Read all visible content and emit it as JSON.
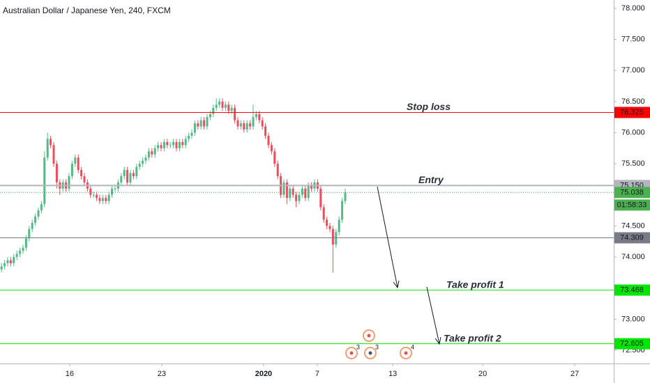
{
  "chart_data": {
    "type": "candlestick",
    "title": "Australian Dollar / Japanese Yen, 240, FXCM",
    "up_color": "#53b987",
    "down_color": "#eb4d5c",
    "xlim": [
      -0.5,
      199.5
    ],
    "xticks": [
      {
        "value": 22.2,
        "label": "16"
      },
      {
        "value": 52.2,
        "label": "23"
      },
      {
        "value": 85.4,
        "label": "2020"
      },
      {
        "value": 102.9,
        "label": "7"
      },
      {
        "value": 127.5,
        "label": "13"
      },
      {
        "value": 156.8,
        "label": "20"
      },
      {
        "value": 186.8,
        "label": "27"
      }
    ],
    "ylim": [
      72.287,
      78.134
    ],
    "yticks": [
      {
        "value": 72.5,
        "label": "72.500"
      },
      {
        "value": 73,
        "label": "73.000"
      },
      {
        "value": 73.5,
        "label": "73.500"
      },
      {
        "value": 74,
        "label": "74.000"
      },
      {
        "value": 74.5,
        "label": "74.500"
      },
      {
        "value": 75,
        "label": "75.000"
      },
      {
        "value": 75.5,
        "label": "75.500"
      },
      {
        "value": 76,
        "label": "76.000"
      },
      {
        "value": 76.5,
        "label": "76.500"
      },
      {
        "value": 77,
        "label": "77.000"
      },
      {
        "value": 77.5,
        "label": "77.500"
      },
      {
        "value": 78,
        "label": "78.000"
      }
    ],
    "ohlc": [
      [
        73.8,
        73.9,
        73.75,
        73.85
      ],
      [
        73.85,
        73.95,
        73.8,
        73.9
      ],
      [
        73.9,
        74.0,
        73.85,
        73.95
      ],
      [
        73.95,
        74.0,
        73.85,
        73.9
      ],
      [
        73.9,
        74.05,
        73.85,
        74.0
      ],
      [
        74.0,
        74.1,
        73.95,
        74.05
      ],
      [
        74.05,
        74.15,
        74.0,
        74.1
      ],
      [
        74.1,
        74.2,
        74.05,
        74.15
      ],
      [
        74.15,
        74.35,
        74.1,
        74.3
      ],
      [
        74.3,
        74.5,
        74.25,
        74.45
      ],
      [
        74.45,
        74.6,
        74.4,
        74.55
      ],
      [
        74.55,
        74.7,
        74.5,
        74.65
      ],
      [
        74.65,
        74.8,
        74.6,
        74.75
      ],
      [
        74.75,
        74.9,
        74.7,
        74.85
      ],
      [
        74.85,
        75.7,
        74.8,
        75.6
      ],
      [
        75.6,
        76.0,
        75.55,
        75.9
      ],
      [
        75.9,
        75.95,
        75.75,
        75.8
      ],
      [
        75.8,
        75.85,
        75.45,
        75.5
      ],
      [
        75.5,
        75.55,
        75.1,
        75.2
      ],
      [
        75.2,
        75.25,
        75.0,
        75.1
      ],
      [
        75.1,
        75.25,
        75.05,
        75.2
      ],
      [
        75.2,
        75.25,
        75.05,
        75.1
      ],
      [
        75.1,
        75.35,
        75.05,
        75.3
      ],
      [
        75.3,
        75.55,
        75.25,
        75.5
      ],
      [
        75.5,
        75.65,
        75.45,
        75.6
      ],
      [
        75.6,
        75.65,
        75.35,
        75.4
      ],
      [
        75.4,
        75.45,
        75.25,
        75.3
      ],
      [
        75.3,
        75.35,
        75.15,
        75.2
      ],
      [
        75.2,
        75.25,
        75.05,
        75.1
      ],
      [
        75.1,
        75.15,
        74.95,
        75.0
      ],
      [
        75.0,
        75.05,
        74.95,
        75.0
      ],
      [
        75.0,
        75.05,
        74.9,
        74.95
      ],
      [
        74.95,
        75.0,
        74.85,
        74.9
      ],
      [
        74.9,
        75.0,
        74.85,
        74.95
      ],
      [
        74.95,
        75.0,
        74.85,
        74.9
      ],
      [
        74.9,
        75.05,
        74.85,
        75.0
      ],
      [
        75.0,
        75.15,
        74.95,
        75.1
      ],
      [
        75.1,
        75.15,
        75.05,
        75.1
      ],
      [
        75.1,
        75.25,
        75.05,
        75.2
      ],
      [
        75.2,
        75.35,
        75.15,
        75.3
      ],
      [
        75.3,
        75.45,
        75.25,
        75.4
      ],
      [
        75.4,
        75.45,
        75.15,
        75.2
      ],
      [
        75.2,
        75.4,
        75.15,
        75.35
      ],
      [
        75.35,
        75.4,
        75.25,
        75.3
      ],
      [
        75.3,
        75.5,
        75.25,
        75.45
      ],
      [
        75.45,
        75.55,
        75.4,
        75.5
      ],
      [
        75.5,
        75.6,
        75.45,
        75.55
      ],
      [
        75.55,
        75.65,
        75.5,
        75.6
      ],
      [
        75.6,
        75.75,
        75.55,
        75.7
      ],
      [
        75.7,
        75.75,
        75.6,
        75.65
      ],
      [
        75.65,
        75.8,
        75.6,
        75.75
      ],
      [
        75.75,
        75.85,
        75.7,
        75.8
      ],
      [
        75.8,
        75.85,
        75.7,
        75.75
      ],
      [
        75.75,
        75.9,
        75.7,
        75.85
      ],
      [
        75.85,
        75.9,
        75.75,
        75.8
      ],
      [
        75.8,
        75.85,
        75.75,
        75.8
      ],
      [
        75.8,
        75.9,
        75.75,
        75.85
      ],
      [
        75.85,
        75.9,
        75.7,
        75.75
      ],
      [
        75.75,
        75.9,
        75.7,
        75.85
      ],
      [
        75.85,
        75.9,
        75.75,
        75.8
      ],
      [
        75.8,
        75.95,
        75.75,
        75.9
      ],
      [
        75.9,
        76.0,
        75.85,
        75.95
      ],
      [
        75.95,
        76.05,
        75.9,
        76.0
      ],
      [
        76.0,
        76.2,
        75.95,
        76.15
      ],
      [
        76.15,
        76.2,
        76.05,
        76.1
      ],
      [
        76.1,
        76.25,
        76.05,
        76.2
      ],
      [
        76.2,
        76.25,
        76.05,
        76.1
      ],
      [
        76.1,
        76.3,
        76.05,
        76.25
      ],
      [
        76.25,
        76.35,
        76.2,
        76.3
      ],
      [
        76.3,
        76.45,
        76.25,
        76.4
      ],
      [
        76.4,
        76.55,
        76.35,
        76.45
      ],
      [
        76.45,
        76.55,
        76.4,
        76.5
      ],
      [
        76.5,
        76.55,
        76.35,
        76.4
      ],
      [
        76.4,
        76.5,
        76.35,
        76.45
      ],
      [
        76.45,
        76.5,
        76.3,
        76.35
      ],
      [
        76.35,
        76.45,
        76.3,
        76.4
      ],
      [
        76.4,
        76.45,
        76.15,
        76.2
      ],
      [
        76.2,
        76.25,
        76.05,
        76.1
      ],
      [
        76.1,
        76.2,
        76.05,
        76.15
      ],
      [
        76.15,
        76.2,
        76.0,
        76.05
      ],
      [
        76.05,
        76.2,
        76.0,
        76.15
      ],
      [
        76.15,
        76.2,
        76.05,
        76.1
      ],
      [
        76.1,
        76.45,
        76.05,
        76.25
      ],
      [
        76.25,
        76.35,
        76.2,
        76.3
      ],
      [
        76.3,
        76.35,
        76.15,
        76.2
      ],
      [
        76.2,
        76.25,
        76.05,
        76.1
      ],
      [
        76.1,
        76.15,
        75.9,
        75.95
      ],
      [
        75.95,
        76.0,
        75.75,
        75.8
      ],
      [
        75.8,
        75.85,
        75.65,
        75.7
      ],
      [
        75.7,
        75.75,
        75.45,
        75.5
      ],
      [
        75.5,
        75.55,
        75.25,
        75.3
      ],
      [
        75.3,
        75.35,
        74.95,
        75.0
      ],
      [
        75.0,
        75.25,
        74.95,
        75.2
      ],
      [
        75.2,
        75.25,
        74.85,
        74.95
      ],
      [
        74.95,
        75.15,
        74.9,
        75.1
      ],
      [
        75.1,
        75.15,
        74.95,
        75.0
      ],
      [
        75.0,
        75.05,
        74.8,
        74.9
      ],
      [
        74.9,
        75.05,
        74.85,
        75.0
      ],
      [
        75.0,
        75.15,
        74.95,
        75.1
      ],
      [
        75.1,
        75.15,
        74.9,
        74.95
      ],
      [
        74.95,
        75.2,
        74.9,
        75.15
      ],
      [
        75.15,
        75.2,
        75.05,
        75.1
      ],
      [
        75.1,
        75.25,
        75.05,
        75.2
      ],
      [
        75.2,
        75.25,
        75.05,
        75.1
      ],
      [
        75.1,
        75.15,
        74.75,
        74.8
      ],
      [
        74.8,
        74.85,
        74.55,
        74.6
      ],
      [
        74.6,
        74.65,
        74.45,
        74.5
      ],
      [
        74.5,
        74.55,
        74.4,
        74.45
      ],
      [
        74.45,
        74.5,
        73.75,
        74.2
      ],
      [
        74.2,
        74.45,
        74.15,
        74.4
      ],
      [
        74.4,
        74.65,
        74.35,
        74.6
      ],
      [
        74.6,
        74.95,
        74.55,
        74.9
      ],
      [
        74.9,
        75.1,
        74.85,
        75.04
      ]
    ],
    "levels": [
      {
        "name": "Stop loss",
        "value": 76.325,
        "color": "#ff0000"
      },
      {
        "name": "Entry",
        "value": 75.15,
        "value_label": "75.150",
        "color": "#b2b5be"
      },
      {
        "value": 75.038,
        "color": "#4caf50",
        "countdown": "01:58:33"
      },
      {
        "value": 74.309,
        "color": "#787b86"
      },
      {
        "name": "Take profit 1",
        "value": 73.468,
        "color": "#00e600"
      },
      {
        "name": "Take profit 2",
        "value": 72.605,
        "color": "#00e600"
      }
    ],
    "events": [
      3,
      3,
      4
    ]
  }
}
